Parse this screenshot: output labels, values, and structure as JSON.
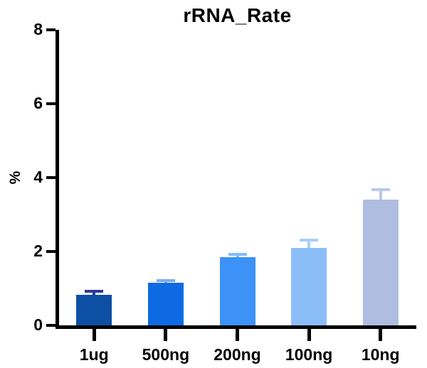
{
  "title": "rRNA_Rate",
  "ylabel": "%",
  "chart_data": {
    "type": "bar",
    "title": "rRNA_Rate",
    "xlabel": "",
    "ylabel": "%",
    "categories": [
      "1ug",
      "500ng",
      "200ng",
      "100ng",
      "10ng"
    ],
    "values": [
      0.82,
      1.15,
      1.85,
      2.1,
      3.4
    ],
    "errors_plus": [
      0.1,
      0.06,
      0.08,
      0.2,
      0.27
    ],
    "bar_colors": [
      "#0D4FA3",
      "#0E6AE3",
      "#3C92F7",
      "#8BBDF9",
      "#AFBDE0"
    ],
    "error_colors": [
      "#2B3A9C",
      "#7FA9EF",
      "#85BBFA",
      "#A8CDFB",
      "#BAC7EC"
    ],
    "ylim": [
      0,
      8
    ],
    "yticks": [
      0,
      2,
      4,
      6,
      8
    ],
    "grid": false,
    "legend_position": "none",
    "axis_color": "#000000",
    "background_color": "#ffffff"
  }
}
